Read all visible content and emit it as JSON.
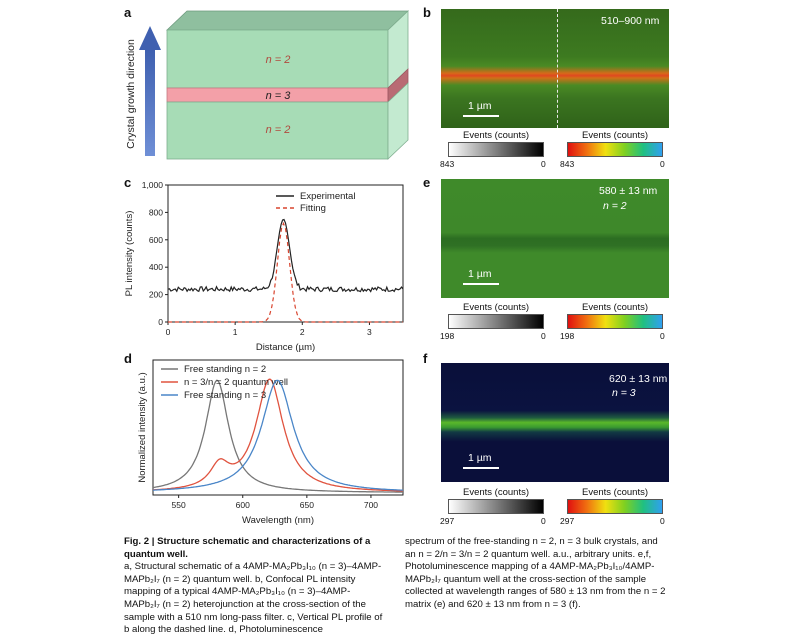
{
  "figure": {
    "caption_title": "Fig. 2 | Structure schematic and characterizations of a quantum well.",
    "caption_left": "a, Structural schematic of a 4AMP-MA₂Pb₃I₁₀ (n = 3)–4AMP-MAPb₂I₇ (n = 2) quantum well. b, Confocal PL intensity mapping of a typical 4AMP-MA₂Pb₃I₁₀ (n = 3)–4AMP-MAPb₂I₇ (n = 2) heterojunction at the cross-section of the sample with a 510 nm long-pass filter. c, Vertical PL profile of b along the dashed line. d, Photoluminescence",
    "caption_right": "spectrum of the free-standing n = 2, n = 3 bulk crystals, and an n = 2/n = 3/n = 2 quantum well. a.u., arbitrary units. e,f, Photoluminescence mapping of a 4AMP-MA₂Pb₃I₁₀/4AMP-MAPb₂I₇ quantum well at the cross-section of the sample collected at wavelength ranges of 580 ± 13 nm from the n = 2 matrix (e) and 620 ± 13 nm from n = 3 (f)."
  },
  "panel_a": {
    "label": "a",
    "axis_label": "Crystal growth direction",
    "layers": [
      "n = 2",
      "n = 3",
      "n = 2"
    ]
  },
  "panel_b": {
    "label": "b",
    "wavelength": "510–900 nm",
    "scale_bar": "1 µm",
    "colorbar_gray": {
      "title": "Events (counts)",
      "min": "843",
      "max": "0"
    },
    "colorbar_color": {
      "title": "Events (counts)",
      "min": "843",
      "max": "0"
    }
  },
  "panel_e": {
    "label": "e",
    "wavelength": "580 ± 13 nm",
    "subtitle": "n = 2",
    "scale_bar": "1 µm",
    "colorbar_gray": {
      "title": "Events (counts)",
      "min": "198",
      "max": "0"
    },
    "colorbar_color": {
      "title": "Events (counts)",
      "min": "198",
      "max": "0"
    }
  },
  "panel_f": {
    "label": "f",
    "wavelength": "620 ± 13 nm",
    "subtitle": "n = 3",
    "scale_bar": "1 µm",
    "colorbar_gray": {
      "title": "Events (counts)",
      "min": "297",
      "max": "0"
    },
    "colorbar_color": {
      "title": "Events (counts)",
      "min": "297",
      "max": "0"
    }
  },
  "chart_data": [
    {
      "id": "c",
      "panel_label": "c",
      "type": "line",
      "title": "",
      "xlabel": "Distance (µm)",
      "ylabel": "PL intensity (counts)",
      "xlim": [
        0,
        3.5
      ],
      "ylim": [
        0,
        1000
      ],
      "xticks": [
        0,
        1,
        2,
        3
      ],
      "yticks": [
        0,
        200,
        400,
        600,
        800,
        1000
      ],
      "ytick_labels": [
        "0",
        "200",
        "400",
        "600",
        "800",
        "1,000"
      ],
      "series": [
        {
          "name": "Experimental",
          "color": "#222222",
          "style": "solid",
          "kind": "noisy_peak",
          "baseline": 240,
          "noise": 18,
          "peak": 750,
          "center": 1.72,
          "sigma": 0.09
        },
        {
          "name": "Fitting",
          "color": "#d9452f",
          "style": "dashed",
          "kind": "gaussian",
          "baseline": 0,
          "peak": 720,
          "center": 1.72,
          "sigma": 0.09
        }
      ]
    },
    {
      "id": "d",
      "panel_label": "d",
      "type": "line",
      "title": "",
      "xlabel": "Wavelength (nm)",
      "ylabel": "Normalized intensity (a.u.)",
      "xlim": [
        530,
        725
      ],
      "ylim": [
        0,
        1.2
      ],
      "xticks": [
        550,
        600,
        650,
        700
      ],
      "yticks": [],
      "series": [
        {
          "name": "Free standing n = 2",
          "color": "#777777",
          "peaks": [
            {
              "center": 580,
              "height": 1.0,
              "width": 11
            }
          ],
          "base": 0.02
        },
        {
          "name": "n = 3/n = 2 quantum well",
          "color": "#e0533f",
          "peaks": [
            {
              "center": 621,
              "height": 1.0,
              "width": 13
            },
            {
              "center": 582,
              "height": 0.2,
              "width": 9
            }
          ],
          "base": 0.02
        },
        {
          "name": "Free standing n = 3",
          "color": "#4a86c8",
          "peaks": [
            {
              "center": 627,
              "height": 1.0,
              "width": 15
            }
          ],
          "base": 0.02
        }
      ]
    }
  ]
}
